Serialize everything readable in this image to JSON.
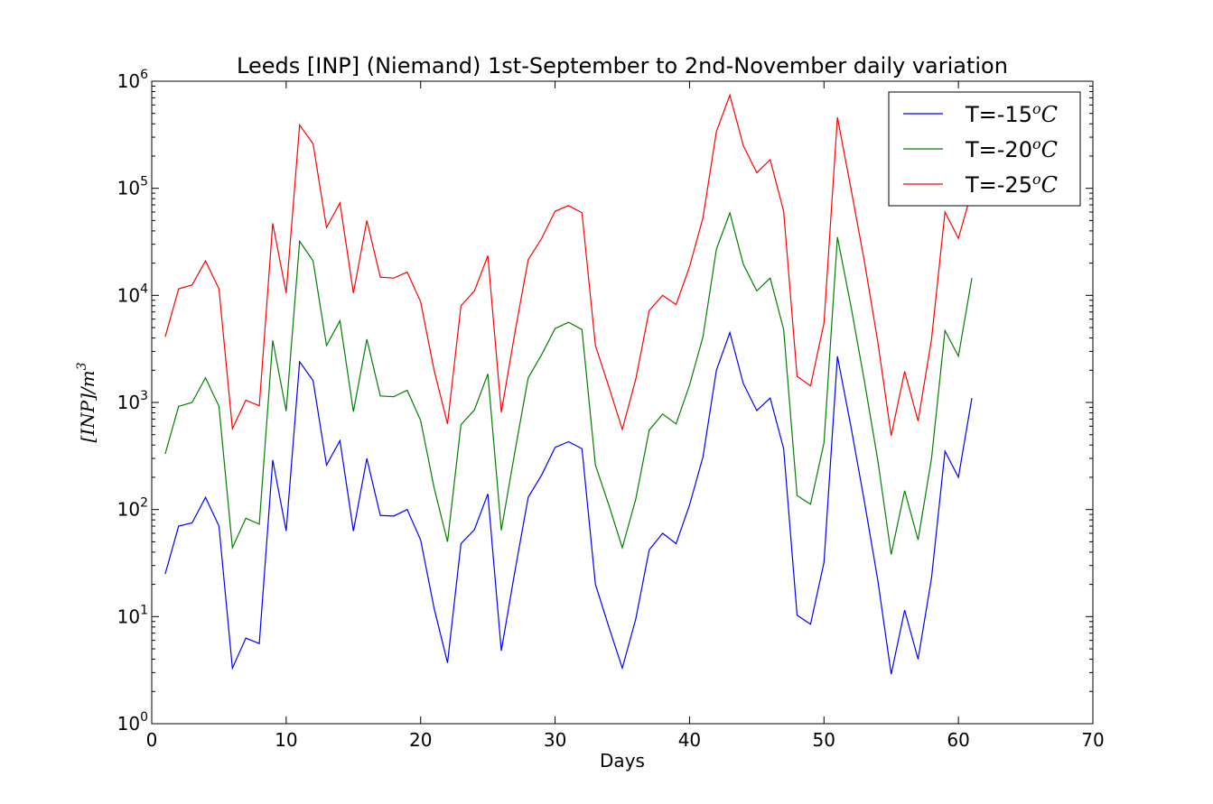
{
  "chart_data": {
    "type": "line",
    "title": "Leeds [INP] (Niemand) 1st-September to 2nd-November daily variation",
    "xlabel": "Days",
    "ylabel_text": "[INP]/m",
    "ylabel_exponent": "3",
    "xlim": [
      0,
      70
    ],
    "ylim": [
      1,
      1000000
    ],
    "yscale": "log",
    "x_ticks": [
      0,
      10,
      20,
      30,
      40,
      50,
      60,
      70
    ],
    "x_tick_labels": [
      "0",
      "10",
      "20",
      "30",
      "40",
      "50",
      "60",
      "70"
    ],
    "y_ticks": [
      1,
      10,
      100,
      1000,
      10000,
      100000,
      1000000
    ],
    "y_tick_bases": [
      "10",
      "10",
      "10",
      "10",
      "10",
      "10",
      "10"
    ],
    "y_tick_exponents": [
      "0",
      "1",
      "2",
      "3",
      "4",
      "5",
      "6"
    ],
    "grid": false,
    "legend_position": "top-right",
    "x": [
      1,
      2,
      3,
      4,
      5,
      6,
      7,
      8,
      9,
      10,
      11,
      12,
      13,
      14,
      15,
      16,
      17,
      18,
      19,
      20,
      21,
      22,
      23,
      24,
      25,
      26,
      27,
      28,
      29,
      30,
      31,
      32,
      33,
      34,
      35,
      36,
      37,
      38,
      39,
      40,
      41,
      42,
      43,
      44,
      45,
      46,
      47,
      48,
      49,
      50,
      51,
      52,
      53,
      54,
      55,
      56,
      57,
      58,
      59,
      60,
      61
    ],
    "series": [
      {
        "name": "T=-15",
        "legend_unit": "oC",
        "color": "#0000ff",
        "values": [
          25,
          70,
          75,
          130,
          70,
          3.3,
          6.3,
          5.6,
          290,
          63,
          2400,
          1600,
          260,
          440,
          63,
          300,
          88,
          87,
          100,
          52,
          12,
          3.7,
          48,
          65,
          140,
          4.8,
          26,
          130,
          210,
          380,
          430,
          370,
          20,
          8,
          3.3,
          9.5,
          42,
          60,
          48,
          110,
          310,
          2000,
          4500,
          1500,
          840,
          1100,
          370,
          10.3,
          8.5,
          32,
          2700,
          600,
          120,
          22,
          2.9,
          11.5,
          4,
          23,
          350,
          200,
          1100
        ]
      },
      {
        "name": "T=-20",
        "legend_unit": "oC",
        "color": "#008000",
        "values": [
          330,
          920,
          1000,
          1700,
          920,
          44,
          83,
          73,
          3800,
          830,
          32000,
          21000,
          3400,
          5800,
          820,
          3900,
          1150,
          1130,
          1300,
          680,
          160,
          50,
          620,
          850,
          1850,
          64,
          340,
          1700,
          2800,
          4900,
          5600,
          4800,
          260,
          110,
          44,
          125,
          550,
          780,
          630,
          1450,
          4100,
          27000,
          59000,
          19500,
          11000,
          14500,
          4800,
          135,
          112,
          420,
          35000,
          8000,
          1600,
          290,
          38,
          150,
          52,
          300,
          4700,
          2700,
          14500
        ]
      },
      {
        "name": "T=-25",
        "legend_unit": "oC",
        "color": "#ff0000",
        "values": [
          4100,
          11500,
          12500,
          21000,
          11500,
          570,
          1050,
          930,
          47000,
          10500,
          390000,
          260000,
          43000,
          73000,
          10500,
          50000,
          14800,
          14500,
          16500,
          8700,
          2000,
          630,
          8000,
          11000,
          23500,
          810,
          4400,
          21500,
          34000,
          61000,
          69000,
          59000,
          3400,
          1400,
          560,
          1650,
          7200,
          10000,
          8200,
          18500,
          53000,
          340000,
          740000,
          250000,
          140000,
          185000,
          61000,
          1750,
          1430,
          5500,
          460000,
          100000,
          21000,
          3700,
          490,
          1950,
          670,
          3900,
          60000,
          34000,
          95000
        ]
      }
    ]
  }
}
